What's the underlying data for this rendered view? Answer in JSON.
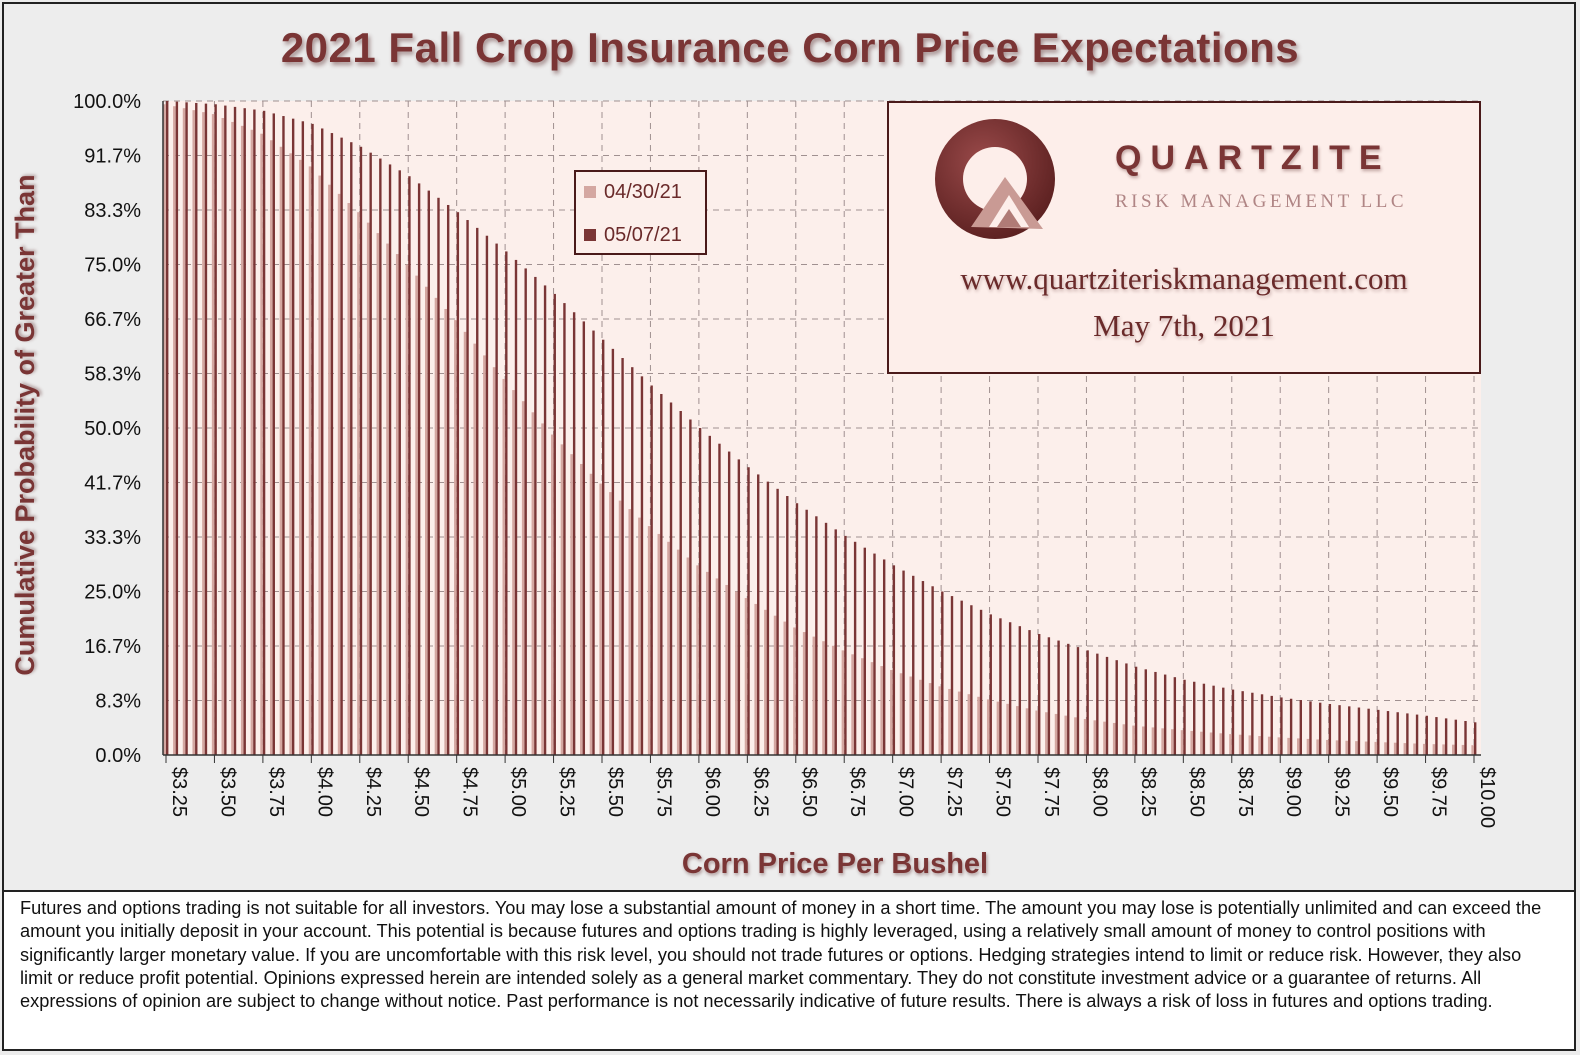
{
  "colors": {
    "accent": "#7a3535",
    "series_0430": "#d4a7a1",
    "series_0507": "#7a3535",
    "plot_bg": "#fcefeb"
  },
  "logo": {
    "company": "QUARTZITE",
    "subtitle": "RISK MANAGEMENT LLC",
    "url": "www.quartziteriskmanagement.com",
    "date": "May 7th, 2021",
    "icon": "quartzite-q-logo-icon"
  },
  "disclaimer": "Futures and options trading is not suitable for all investors. You may lose a substantial amount of money in a short time. The amount you may lose is potentially unlimited and can exceed the amount you initially deposit in your account. This potential is because futures and options trading is highly leveraged, using a relatively small amount of money to control positions with significantly larger monetary value. If you are uncomfortable with this risk level, you should not trade futures or options. Hedging strategies intend to limit or reduce risk. However, they also limit or reduce profit potential. Opinions expressed herein are intended solely as a general market commentary. They do not constitute investment advice or a guarantee of returns. All expressions of opinion are subject to change without notice. Past performance is not necessarily indicative of future results. There is always a risk of loss in futures and options trading.",
  "chart_data": {
    "type": "bar",
    "title": "2021 Fall Crop Insurance Corn Price Expectations",
    "xlabel": "Corn Price Per Bushel",
    "ylabel": "Cumulative Probability of Greater Than",
    "ylim": [
      0,
      100
    ],
    "xlim": [
      3.25,
      10.0
    ],
    "x_step": 0.05,
    "y_ticks": [
      "100.0%",
      "91.7%",
      "83.3%",
      "75.0%",
      "66.7%",
      "58.3%",
      "50.0%",
      "41.7%",
      "33.3%",
      "25.0%",
      "16.7%",
      "8.3%",
      "0.0%"
    ],
    "x_ticks": [
      "$3.25",
      "$3.50",
      "$3.75",
      "$4.00",
      "$4.25",
      "$4.50",
      "$4.75",
      "$5.00",
      "$5.25",
      "$5.50",
      "$5.75",
      "$6.00",
      "$6.25",
      "$6.50",
      "$6.75",
      "$7.00",
      "$7.25",
      "$7.50",
      "$7.75",
      "$8.00",
      "$8.25",
      "$8.50",
      "$8.75",
      "$9.00",
      "$9.25",
      "$9.50",
      "$9.75",
      "$10.00"
    ],
    "grid": true,
    "legend_position": "top-center",
    "series": [
      {
        "name": "04/30/21",
        "x": [
          3.25,
          3.5,
          3.75,
          4.0,
          4.25,
          4.5,
          4.75,
          5.0,
          5.25,
          5.5,
          5.75,
          6.0,
          6.25,
          6.5,
          6.75,
          7.0,
          7.25,
          7.5,
          7.75,
          8.0,
          8.25,
          8.5,
          8.75,
          9.0,
          9.25,
          9.5,
          9.75,
          10.0
        ],
        "values": [
          99.5,
          98.0,
          95.0,
          90.0,
          83.0,
          75.0,
          66.5,
          57.5,
          49.0,
          41.5,
          35.0,
          29.0,
          24.0,
          19.5,
          16.0,
          13.0,
          10.5,
          8.5,
          6.8,
          5.5,
          4.5,
          3.8,
          3.2,
          2.7,
          2.3,
          2.0,
          1.7,
          1.5
        ]
      },
      {
        "name": "05/07/21",
        "x": [
          3.25,
          3.5,
          3.75,
          4.0,
          4.25,
          4.5,
          4.75,
          5.0,
          5.25,
          5.5,
          5.75,
          6.0,
          6.25,
          6.5,
          6.75,
          7.0,
          7.25,
          7.5,
          7.75,
          8.0,
          8.25,
          8.5,
          8.75,
          9.0,
          9.25,
          9.5,
          9.75,
          10.0
        ],
        "values": [
          100.0,
          99.5,
          98.5,
          96.5,
          93.0,
          88.5,
          83.0,
          77.0,
          70.5,
          63.5,
          56.5,
          50.0,
          44.0,
          38.5,
          33.5,
          29.0,
          25.0,
          21.5,
          18.5,
          16.0,
          13.5,
          11.5,
          10.0,
          8.8,
          7.8,
          6.9,
          6.0,
          5.0
        ]
      }
    ]
  }
}
